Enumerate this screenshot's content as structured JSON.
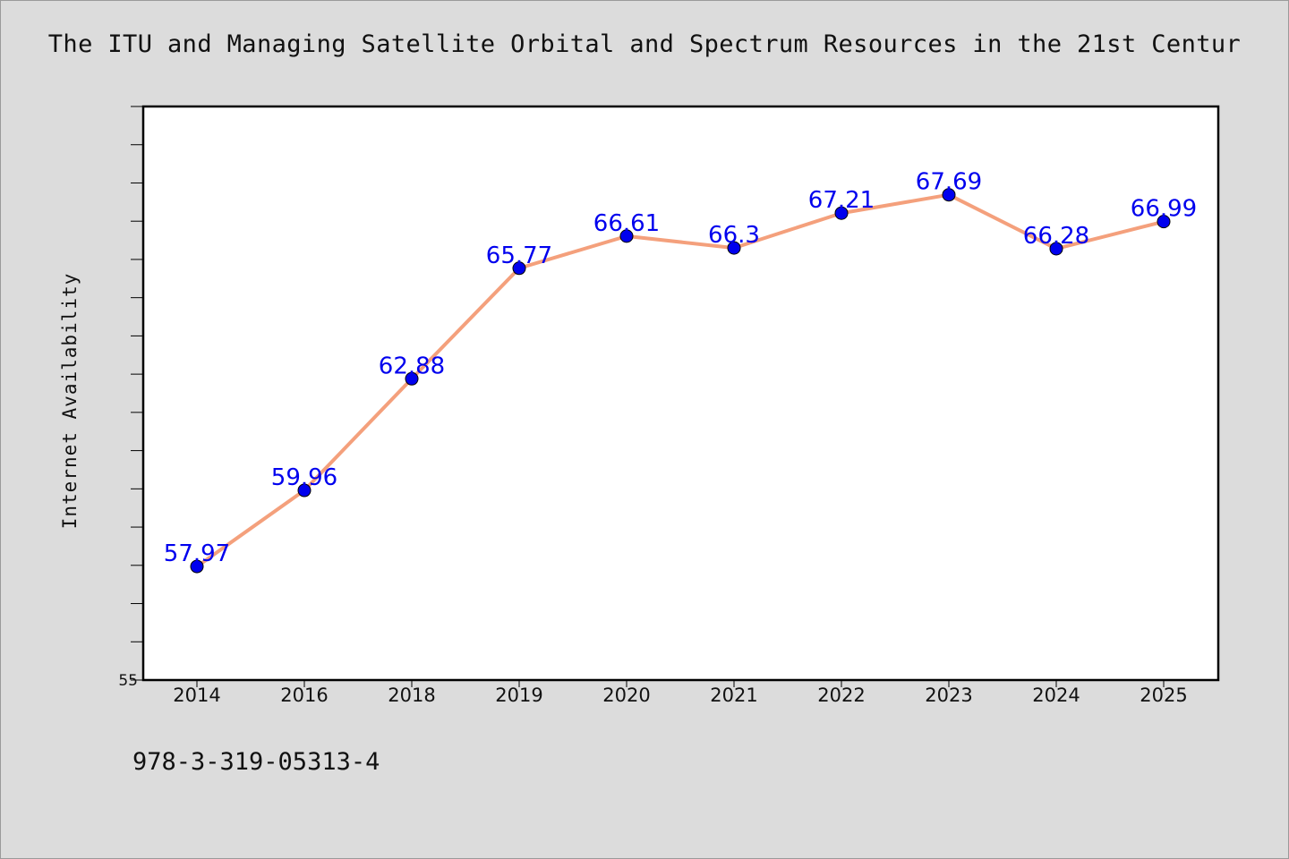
{
  "chart_data": {
    "type": "line",
    "title": "The ITU and Managing Satellite Orbital and Spectrum Resources in the 21st Centur",
    "xlabel": "",
    "ylabel": "Internet Availability",
    "categories": [
      "2014",
      "2016",
      "2018",
      "2019",
      "2020",
      "2021",
      "2022",
      "2023",
      "2024",
      "2025"
    ],
    "values": [
      57.97,
      59.96,
      62.88,
      65.77,
      66.61,
      66.3,
      67.21,
      67.69,
      66.28,
      66.99
    ],
    "data_labels": [
      "57.97",
      "59.96",
      "62.88",
      "65.77",
      "66.61",
      "66.3",
      "67.21",
      "67.69",
      "66.28",
      "66.99"
    ],
    "ylim": [
      55,
      70
    ],
    "y_tick_labels": [
      "55"
    ],
    "grid": false,
    "line_color": "#f4a07c",
    "marker_color": "#0000ee",
    "label_color": "#0000ee"
  },
  "footer": {
    "code": "978-3-319-05313-4"
  }
}
